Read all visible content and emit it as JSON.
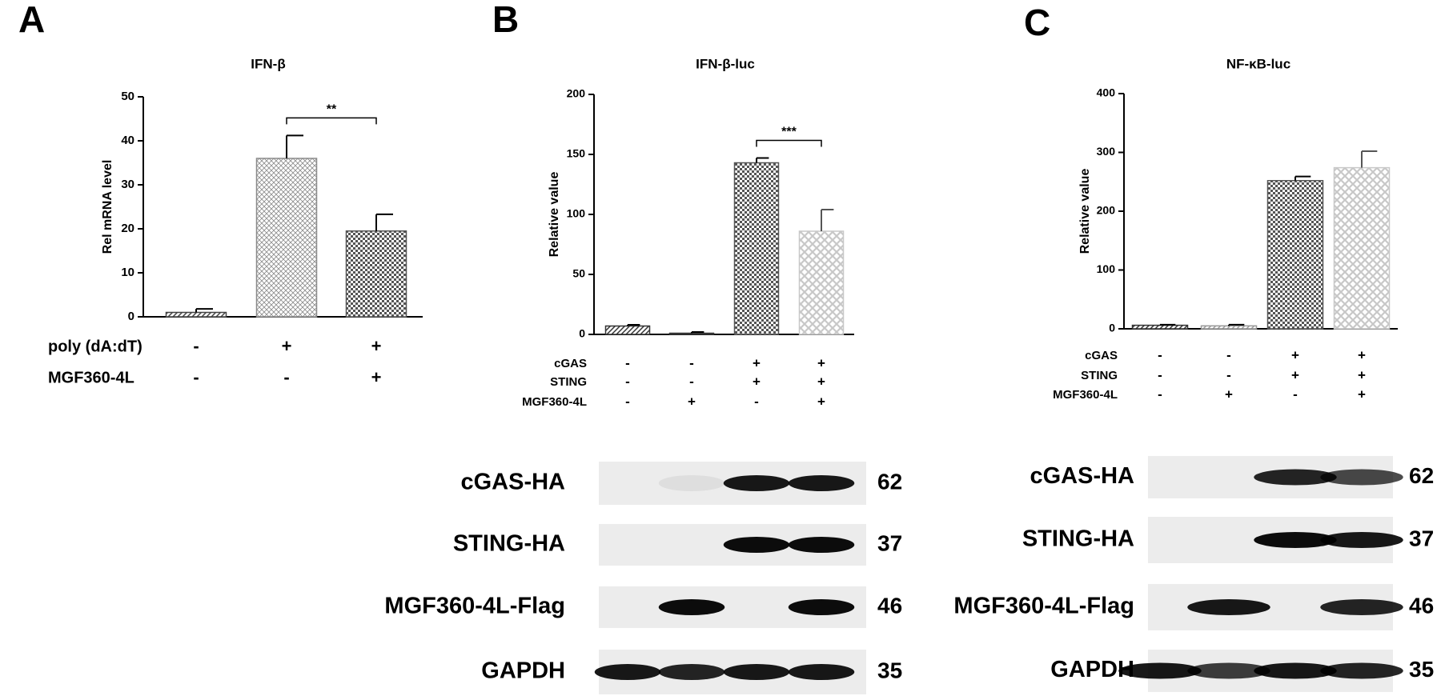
{
  "chart_data": [
    {
      "type": "bar",
      "panel_label": "A",
      "title": "IFN-β",
      "ylabel": "Rel mRNA level",
      "categories": [
        null,
        null,
        null
      ],
      "values": [
        1,
        36,
        19.5
      ],
      "errors": [
        0.8,
        5.2,
        3.8
      ],
      "patterns": [
        "hatch",
        "grid",
        "checker"
      ],
      "colors": [
        "#444444",
        "#8a8a8a",
        "#555555"
      ],
      "ylim": [
        0,
        50
      ],
      "yticks": [
        0,
        10,
        20,
        30,
        40,
        50
      ],
      "significance_label": "**",
      "conditions": [
        {
          "label": "poly (dA:dT)",
          "values": [
            "-",
            "+",
            "+"
          ]
        },
        {
          "label": "MGF360-4L",
          "values": [
            "-",
            "-",
            "+"
          ]
        }
      ]
    },
    {
      "type": "bar",
      "panel_label": "B",
      "title": "IFN-β-luc",
      "ylabel": "Relative value",
      "categories": [
        null,
        null,
        null,
        null
      ],
      "values": [
        7,
        1,
        143,
        86
      ],
      "errors": [
        1,
        1,
        4,
        18
      ],
      "patterns": [
        "hatch",
        "hatch",
        "checker",
        "diamond"
      ],
      "colors": [
        "#333333",
        "#333333",
        "#555555",
        "#c8c8c8"
      ],
      "ylim": [
        0,
        200
      ],
      "yticks": [
        0,
        50,
        100,
        150,
        200
      ],
      "significance_label": "***",
      "conditions": [
        {
          "label": "cGAS",
          "values": [
            "-",
            "-",
            "+",
            "+"
          ]
        },
        {
          "label": "STING",
          "values": [
            "-",
            "-",
            "+",
            "+"
          ]
        },
        {
          "label": "MGF360-4L",
          "values": [
            "-",
            "+",
            "-",
            "+"
          ]
        }
      ],
      "blots": [
        {
          "label": "cGAS-HA",
          "size": "62"
        },
        {
          "label": "STING-HA",
          "size": "37"
        },
        {
          "label": "MGF360-4L-Flag",
          "size": "46"
        },
        {
          "label": "GAPDH",
          "size": "35"
        }
      ]
    },
    {
      "type": "bar",
      "panel_label": "C",
      "title": "NF-κB-luc",
      "ylabel": "Relative value",
      "categories": [
        null,
        null,
        null,
        null
      ],
      "values": [
        6,
        5,
        252,
        274
      ],
      "errors": [
        1,
        2,
        7,
        28
      ],
      "patterns": [
        "hatch",
        "hatch",
        "checker",
        "diamond"
      ],
      "colors": [
        "#333333",
        "#999999",
        "#555555",
        "#c8c8c8"
      ],
      "ylim": [
        0,
        400
      ],
      "yticks": [
        0,
        100,
        200,
        300,
        400
      ],
      "conditions": [
        {
          "label": "cGAS",
          "values": [
            "-",
            "-",
            "+",
            "+"
          ]
        },
        {
          "label": "STING",
          "values": [
            "-",
            "-",
            "+",
            "+"
          ]
        },
        {
          "label": "MGF360-4L",
          "values": [
            "-",
            "+",
            "-",
            "+"
          ]
        }
      ],
      "blots": [
        {
          "label": "cGAS-HA",
          "size": "62"
        },
        {
          "label": "STING-HA",
          "size": "37"
        },
        {
          "label": "MGF360-4L-Flag",
          "size": "46"
        },
        {
          "label": "GAPDH",
          "size": "35"
        }
      ]
    }
  ]
}
